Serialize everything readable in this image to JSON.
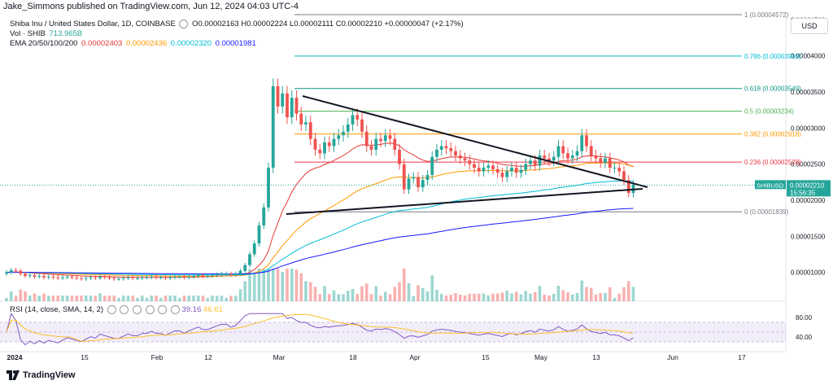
{
  "header": {
    "publish_line": "Jake_Simmons published on TradingView.com, Jun 12, 2024 04:03 UTC-4"
  },
  "legend": {
    "title": "Shiba Inu / United States Dollar, 1D, COINBASE",
    "ohlc": "O0.00002163 H0.00002224 L0.00002111 C0.00002210 +0.00000047 (+2.17%)",
    "vol_label": "Vol · SHIB",
    "vol_value": "713.965B",
    "ema_label": "EMA 20/50/100/200",
    "ema_values": [
      {
        "text": "0.00002403",
        "color": "#e53935"
      },
      {
        "text": "0.00002436",
        "color": "#ff9800"
      },
      {
        "text": "0.00002320",
        "color": "#00bcd4"
      },
      {
        "text": "0.00001981",
        "color": "#1a1aff"
      }
    ]
  },
  "rsi_legend": {
    "label": "RSI (14, close, SMA, 14, 2)",
    "value1": "39.16",
    "value2": "46.61"
  },
  "currency": "USD",
  "footer": {
    "brand": "TradingView"
  },
  "chart_data": {
    "type": "candlestick",
    "symbol": "SHIBUSD",
    "price_tag": {
      "value": "0.00002210",
      "countdown": "15:56:35",
      "label": "SHIBUSD"
    },
    "y_axis": {
      "min": 6e-06,
      "max": 4.55e-05,
      "ticks": [
        "0.00004500",
        "0.00004000",
        "0.00003500",
        "0.00003000",
        "0.00002500",
        "0.00002000",
        "0.00001500",
        "0.00001000"
      ]
    },
    "x_axis": {
      "ticks": [
        "2024",
        "15",
        "Feb",
        "12",
        "Mar",
        "18",
        "Apr",
        "15",
        "May",
        "13",
        "Jun",
        "17"
      ]
    },
    "fibonacci": [
      {
        "level": "1",
        "price": "0.00004572",
        "color": "#787b86"
      },
      {
        "level": "0.786",
        "price": "0.00003999",
        "color": "#00bcd4"
      },
      {
        "level": "0.618",
        "price": "0.00003549",
        "color": "#089981"
      },
      {
        "level": "0.5",
        "price": "0.00003234",
        "color": "#4caf50"
      },
      {
        "level": "0.382",
        "price": "0.00002918",
        "color": "#ff9800"
      },
      {
        "level": "0.236",
        "price": "0.00002528",
        "color": "#f23645"
      },
      {
        "level": "0",
        "price": "0.00001839",
        "color": "#787b86"
      }
    ],
    "rsi_axis": {
      "ticks": [
        "80.00",
        "40.00"
      ]
    },
    "closes": [
      1e-05,
      1.03e-05,
      1.02e-05,
      9.8e-06,
      9.5e-06,
      9.6e-06,
      9.4e-06,
      9.5e-06,
      9.3e-06,
      9.4e-06,
      9.3e-06,
      9.2e-06,
      9.3e-06,
      9.4e-06,
      9.3e-06,
      9.2e-06,
      9.1e-06,
      9.2e-06,
      9.3e-06,
      9.2e-06,
      9.4e-06,
      9.3e-06,
      9.2e-06,
      9.1e-06,
      9.1e-06,
      9.2e-06,
      9.3e-06,
      9.2e-06,
      9.2e-06,
      9.3e-06,
      9.3e-06,
      9.4e-06,
      9.3e-06,
      9.3e-06,
      9.2e-06,
      9.3e-06,
      9.4e-06,
      9.4e-06,
      9.3e-06,
      9.4e-06,
      9.5e-06,
      9.6e-06,
      9.5e-06,
      9.5e-06,
      9.6e-06,
      9.7e-06,
      9.8e-06,
      9.8e-06,
      9.7e-06,
      9.8e-06,
      1.02e-05,
      1.1e-05,
      1.25e-05,
      1.4e-05,
      1.65e-05,
      1.9e-05,
      2.45e-05,
      3.58e-05,
      3.3e-05,
      3.48e-05,
      3.15e-05,
      3.42e-05,
      3.2e-05,
      3.05e-05,
      3.08e-05,
      2.85e-05,
      2.7e-05,
      2.65e-05,
      2.8e-05,
      2.75e-05,
      2.85e-05,
      2.9e-05,
      2.95e-05,
      3.05e-05,
      3.18e-05,
      3.12e-05,
      2.95e-05,
      2.75e-05,
      2.7e-05,
      2.85e-05,
      2.82e-05,
      2.9e-05,
      2.85e-05,
      2.7e-05,
      2.5e-05,
      2.15e-05,
      2.3e-05,
      2.32e-05,
      2.18e-05,
      2.28e-05,
      2.35e-05,
      2.6e-05,
      2.7e-05,
      2.75e-05,
      2.72e-05,
      2.68e-05,
      2.62e-05,
      2.58e-05,
      2.55e-05,
      2.5e-05,
      2.45e-05,
      2.4e-05,
      2.45e-05,
      2.48e-05,
      2.43e-05,
      2.38e-05,
      2.32e-05,
      2.4e-05,
      2.45e-05,
      2.38e-05,
      2.42e-05,
      2.5e-05,
      2.55e-05,
      2.48e-05,
      2.62e-05,
      2.58e-05,
      2.55e-05,
      2.6e-05,
      2.75e-05,
      2.65e-05,
      2.58e-05,
      2.62e-05,
      2.68e-05,
      2.9e-05,
      2.75e-05,
      2.62e-05,
      2.58e-05,
      2.52e-05,
      2.58e-05,
      2.45e-05,
      2.45e-05,
      2.4e-05,
      2.28e-05,
      2.1e-05,
      2.21e-05
    ],
    "series": [
      {
        "name": "EMA 20"
      },
      {
        "name": "EMA 50"
      },
      {
        "name": "EMA 100"
      },
      {
        "name": "EMA 200"
      }
    ]
  }
}
